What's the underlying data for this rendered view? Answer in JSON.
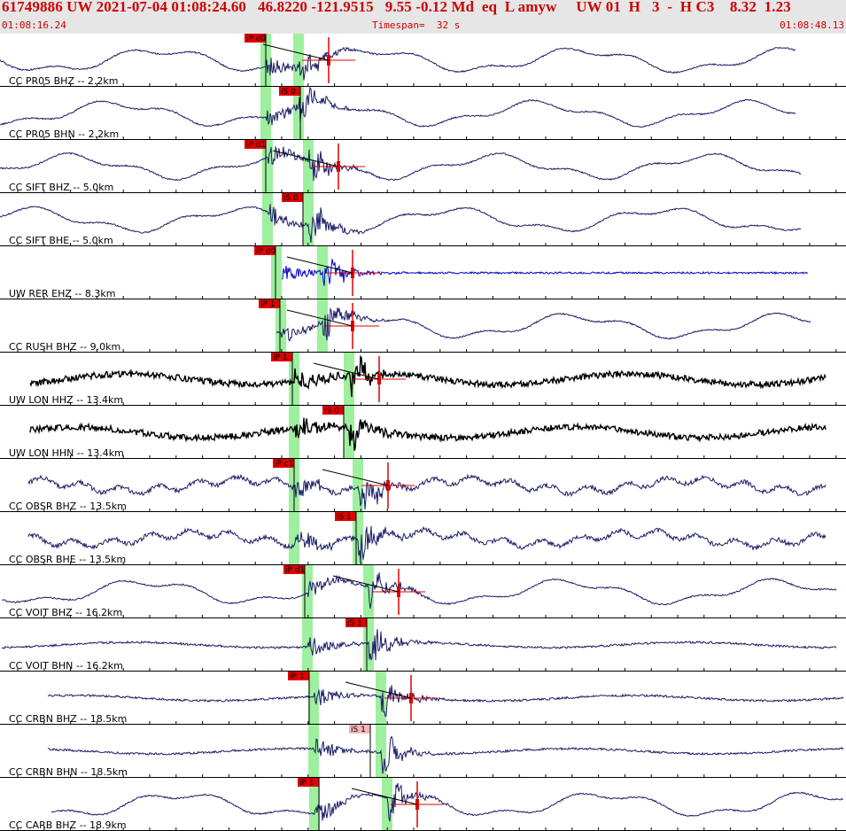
{
  "header": {
    "title": "61749886 UW 2021-07-04 01:08:24.60   46.8220 -121.9515   9.55 -0.12 Md  eq  L amyw     UW 01  H   3  -  H C3    8.32  1.23",
    "time_start": "01:08:16.24",
    "timespan": "Timespan=  32 s",
    "time_end": "01:08:48.13"
  },
  "colors": {
    "header_bg": "#e6e6e6",
    "header_text": "#cc0000",
    "trace": "#1a1a66",
    "trace_blue": "#0000cc",
    "trace_black": "#000000",
    "pick_window": "#9ef09e",
    "pick_marker": "#e00000",
    "pick_flag": "#e00000",
    "pick_flag_light": "#f4b6b6"
  },
  "traces": [
    {
      "label": "CC PR05 BHZ -- 2.2km",
      "pick": "iP d0",
      "color": "trace",
      "style": "smooth",
      "pick_light": false
    },
    {
      "label": "CC PR05 BHN -- 2.2km",
      "pick": "iS 0",
      "color": "trace",
      "style": "smooth",
      "pick_light": false
    },
    {
      "label": "CC SIFT BHZ -- 5.0km",
      "pick": "iP d1",
      "color": "trace",
      "style": "smooth",
      "pick_light": false
    },
    {
      "label": "CC SIFT BHE -- 5.0km",
      "pick": "iS 0",
      "color": "trace",
      "style": "smooth",
      "pick_light": false
    },
    {
      "label": "UW RER EHZ -- 8.3km",
      "pick": "iP d0",
      "color": "trace_blue",
      "style": "flat",
      "pick_light": false
    },
    {
      "label": "CC RUSH BHZ -- 9.0km",
      "pick": "iP 1",
      "color": "trace",
      "style": "smooth",
      "pick_light": false
    },
    {
      "label": "UW LON HHZ -- 13.4km",
      "pick": "iP 1",
      "color": "trace_black",
      "style": "thick",
      "pick_light": false
    },
    {
      "label": "UW LON HHN -- 13.4km",
      "pick": "iS 0",
      "color": "trace_black",
      "style": "thick",
      "pick_light": false
    },
    {
      "label": "CC OBSR BHZ -- 13.5km",
      "pick": "iP c1",
      "color": "trace",
      "style": "noisy",
      "pick_light": false
    },
    {
      "label": "CC OBSR BHE -- 13.5km",
      "pick": "iS 1",
      "color": "trace",
      "style": "noisy",
      "pick_light": false
    },
    {
      "label": "CC VOIT BHZ -- 16.2km",
      "pick": "iP d1",
      "color": "trace",
      "style": "smooth",
      "pick_light": false
    },
    {
      "label": "CC VOIT BHN -- 16.2km",
      "pick": "iS 1",
      "color": "trace",
      "style": "quiet",
      "pick_light": false
    },
    {
      "label": "CC CRBN BHZ -- 18.5km",
      "pick": "iP 1",
      "color": "trace",
      "style": "quiet",
      "pick_light": false
    },
    {
      "label": "CC CRBN BHN -- 18.5km",
      "pick": "iS 1",
      "color": "trace",
      "style": "quiet",
      "pick_light": true
    },
    {
      "label": "CC CARB BHZ -- 18.9km",
      "pick": "iP 1",
      "color": "trace",
      "style": "smooth",
      "pick_light": false
    }
  ]
}
